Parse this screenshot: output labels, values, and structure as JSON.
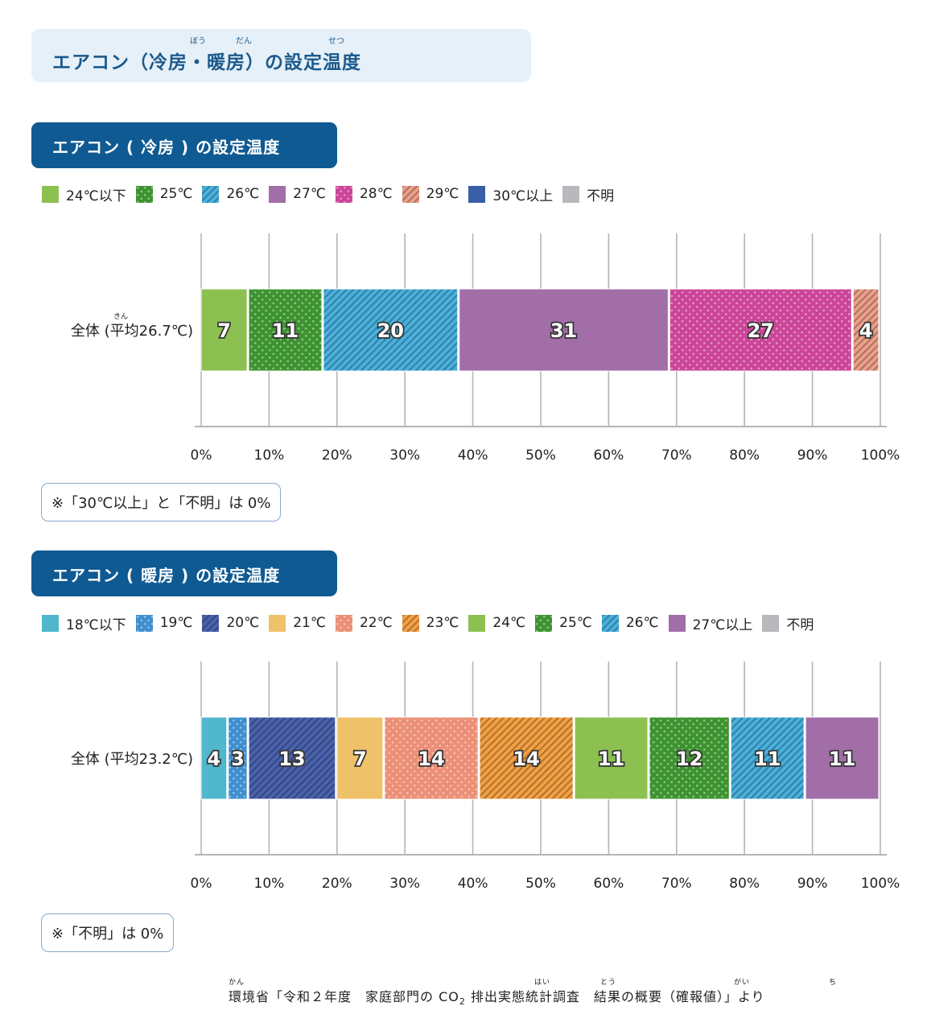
{
  "page_title": "エアコン（冷房・暖房）の設定温度",
  "page_title_ruby": [
    {
      "text": "ぼう"
    },
    {
      "text": "だん"
    },
    {
      "text": "せつ"
    }
  ],
  "colors": {
    "t18": "#50b7cc",
    "t19": "#3f8fcf",
    "t20": "#4a62ad",
    "t21": "#efc26a",
    "t22": "#ec8f77",
    "t23": "#f3a043",
    "t24": "#8cc152",
    "t25": "#3d932f",
    "t26": "#49b1de",
    "t27": "#a16ea8",
    "t28": "#cc4599",
    "t29": "#ec9f88",
    "t30": "#3a5ea7",
    "unknown": "#b9b9bd"
  },
  "chart_data": [
    {
      "type": "bar",
      "orientation": "horizontal-stacked",
      "title": "エアコン ( 冷房 ) の設定温度",
      "legend": [
        {
          "label": "24℃以下",
          "color_key": "t24",
          "pattern": "solid"
        },
        {
          "label": "25℃",
          "color_key": "t25",
          "pattern": "dots"
        },
        {
          "label": "26℃",
          "color_key": "t26",
          "pattern": "stripes"
        },
        {
          "label": "27℃",
          "color_key": "t27",
          "pattern": "solid"
        },
        {
          "label": "28℃",
          "color_key": "t28",
          "pattern": "dots"
        },
        {
          "label": "29℃",
          "color_key": "t29",
          "pattern": "stripes"
        },
        {
          "label": "30℃以上",
          "color_key": "t30",
          "pattern": "solid"
        },
        {
          "label": "不明",
          "color_key": "unknown",
          "pattern": "solid"
        }
      ],
      "category": "全体 (平均26.7℃)",
      "category_ruby": "きん",
      "values": [
        7,
        11,
        20,
        31,
        27,
        4,
        0,
        0
      ],
      "xlim": [
        0,
        100
      ],
      "xticks": [
        "0%",
        "10%",
        "20%",
        "30%",
        "40%",
        "50%",
        "60%",
        "70%",
        "80%",
        "90%",
        "100%"
      ],
      "grid": true,
      "note": "※「30℃以上」と「不明」は 0%"
    },
    {
      "type": "bar",
      "orientation": "horizontal-stacked",
      "title": "エアコン ( 暖房 ) の設定温度",
      "legend": [
        {
          "label": "18℃以下",
          "color_key": "t18",
          "pattern": "solid"
        },
        {
          "label": "19℃",
          "color_key": "t19",
          "pattern": "dots"
        },
        {
          "label": "20℃",
          "color_key": "t20",
          "pattern": "stripes"
        },
        {
          "label": "21℃",
          "color_key": "t21",
          "pattern": "solid"
        },
        {
          "label": "22℃",
          "color_key": "t22",
          "pattern": "dots"
        },
        {
          "label": "23℃",
          "color_key": "t23",
          "pattern": "stripes"
        },
        {
          "label": "24℃",
          "color_key": "t24",
          "pattern": "solid"
        },
        {
          "label": "25℃",
          "color_key": "t25",
          "pattern": "dots"
        },
        {
          "label": "26℃",
          "color_key": "t26",
          "pattern": "stripes"
        },
        {
          "label": "27℃以上",
          "color_key": "t27",
          "pattern": "solid"
        },
        {
          "label": "不明",
          "color_key": "unknown",
          "pattern": "solid"
        }
      ],
      "category": "全体 (平均23.2℃)",
      "values": [
        4,
        3,
        13,
        7,
        14,
        14,
        11,
        12,
        11,
        11,
        0
      ],
      "xlim": [
        0,
        100
      ],
      "xticks": [
        "0%",
        "10%",
        "20%",
        "30%",
        "40%",
        "50%",
        "60%",
        "70%",
        "80%",
        "90%",
        "100%"
      ],
      "grid": true,
      "note": "※「不明」は 0%"
    }
  ],
  "source": {
    "text_before": "環境省「令和２年度　家庭部門の CO",
    "subscript": "2",
    "text_after": " 排出実態統計調査　結果の概要（確報値）」より",
    "ruby": [
      {
        "text": "かん"
      },
      {
        "text": "はい"
      },
      {
        "text": "とう"
      },
      {
        "text": "がい"
      },
      {
        "text": "ち"
      }
    ]
  }
}
